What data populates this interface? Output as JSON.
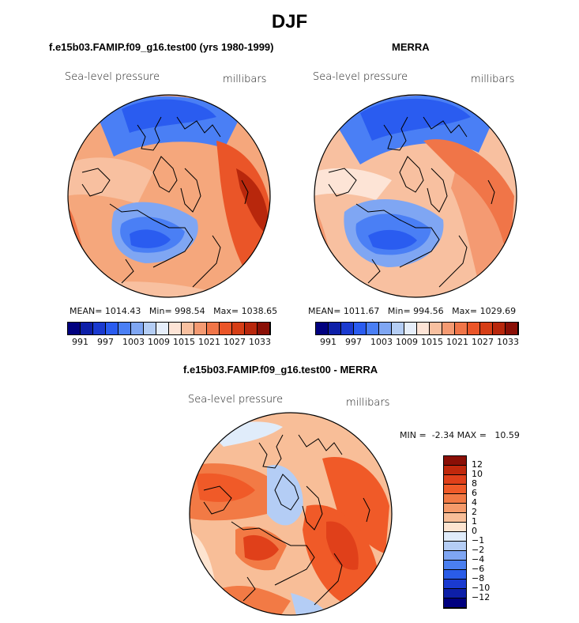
{
  "title": "DJF",
  "panels": [
    {
      "id": "model",
      "title": "f.e15b03.FAMIP.f09_g16.test00 (yrs 1980-1999)",
      "variable": "Sea-level pressure",
      "units": "millibars",
      "stats": {
        "mean_label": "MEAN=",
        "mean": "1014.43",
        "min_label": "Min=",
        "min": "998.54",
        "max_label": "Max=",
        "max": "1038.65"
      }
    },
    {
      "id": "obs",
      "title": "MERRA",
      "variable": "Sea-level pressure",
      "units": "millibars",
      "stats": {
        "mean_label": "MEAN=",
        "mean": "1011.67",
        "min_label": "Min=",
        "min": "994.56",
        "max_label": "Max=",
        "max": "1029.69"
      }
    },
    {
      "id": "diff",
      "title": "f.e15b03.FAMIP.f09_g16.test00 - MERRA",
      "variable": "Sea-level pressure",
      "units": "millibars",
      "stats": {
        "min_label": "MIN =",
        "min": "-2.34",
        "max_label": "MAX =",
        "max": "10.59"
      }
    }
  ],
  "colorbar_abs": {
    "colors": [
      "#00007f",
      "#0d1fa8",
      "#1a3ad0",
      "#2a5cf0",
      "#4a7ff5",
      "#7fa6f3",
      "#b4cdf4",
      "#e6eefa",
      "#fde4d6",
      "#f8c0a0",
      "#f49a72",
      "#f07548",
      "#ea5528",
      "#d63e16",
      "#b8270c",
      "#8a0f06"
    ],
    "labels": [
      "991",
      "997",
      "1003",
      "1009",
      "1015",
      "1021",
      "1027",
      "1033"
    ]
  },
  "colorbar_diff": {
    "colors": [
      "#8a0f06",
      "#c0280c",
      "#e0401a",
      "#f05a28",
      "#f27a45",
      "#f59a6a",
      "#f8be98",
      "#fde4d0",
      "#e0ecfa",
      "#b4cdf5",
      "#7fa6f3",
      "#4a7ff0",
      "#2a5ce8",
      "#1a3ad0",
      "#0d1fa8",
      "#00007f"
    ],
    "labels": [
      "12",
      "10",
      "8",
      "6",
      "4",
      "2",
      "1",
      "0",
      "−1",
      "−2",
      "−4",
      "−6",
      "−8",
      "−10",
      "−12"
    ]
  }
}
